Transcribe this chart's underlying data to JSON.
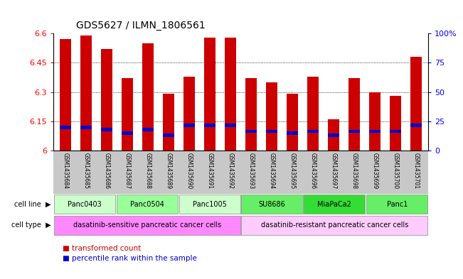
{
  "title": "GDS5627 / ILMN_1806561",
  "samples": [
    "GSM1435684",
    "GSM1435685",
    "GSM1435686",
    "GSM1435687",
    "GSM1435688",
    "GSM1435689",
    "GSM1435690",
    "GSM1435691",
    "GSM1435692",
    "GSM1435693",
    "GSM1435694",
    "GSM1435695",
    "GSM1435696",
    "GSM1435697",
    "GSM1435698",
    "GSM1435699",
    "GSM1435700",
    "GSM1435701"
  ],
  "red_values": [
    6.57,
    6.59,
    6.52,
    6.37,
    6.55,
    6.29,
    6.38,
    6.58,
    6.58,
    6.37,
    6.35,
    6.29,
    6.38,
    6.16,
    6.37,
    6.3,
    6.28,
    6.48
  ],
  "blue_values": [
    6.11,
    6.11,
    6.1,
    6.08,
    6.1,
    6.07,
    6.12,
    6.12,
    6.12,
    6.09,
    6.09,
    6.08,
    6.09,
    6.07,
    6.09,
    6.09,
    6.09,
    6.12
  ],
  "ylim": [
    6.0,
    6.6
  ],
  "yticks": [
    6.0,
    6.15,
    6.3,
    6.45,
    6.6
  ],
  "ytick_labels": [
    "6",
    "6.15",
    "6.3",
    "6.45",
    "6.6"
  ],
  "right_yticks": [
    0,
    25,
    50,
    75,
    100
  ],
  "right_ytick_labels": [
    "0",
    "25",
    "50",
    "75",
    "100%"
  ],
  "cell_lines": [
    {
      "label": "Panc0403",
      "start": 0,
      "end": 3,
      "color": "#ccffcc"
    },
    {
      "label": "Panc0504",
      "start": 3,
      "end": 6,
      "color": "#99ff99"
    },
    {
      "label": "Panc1005",
      "start": 6,
      "end": 9,
      "color": "#ccffcc"
    },
    {
      "label": "SU8686",
      "start": 9,
      "end": 12,
      "color": "#66ee66"
    },
    {
      "label": "MiaPaCa2",
      "start": 12,
      "end": 15,
      "color": "#33dd33"
    },
    {
      "label": "Panc1",
      "start": 15,
      "end": 18,
      "color": "#66ee66"
    }
  ],
  "cell_types": [
    {
      "label": "dasatinib-sensitive pancreatic cancer cells",
      "start": 0,
      "end": 9,
      "color": "#ff88ff"
    },
    {
      "label": "dasatinib-resistant pancreatic cancer cells",
      "start": 9,
      "end": 18,
      "color": "#ffccff"
    }
  ],
  "bar_color": "#cc0000",
  "blue_color": "#0000cc",
  "base": 6.0,
  "gray_band_color": "#c8c8c8"
}
